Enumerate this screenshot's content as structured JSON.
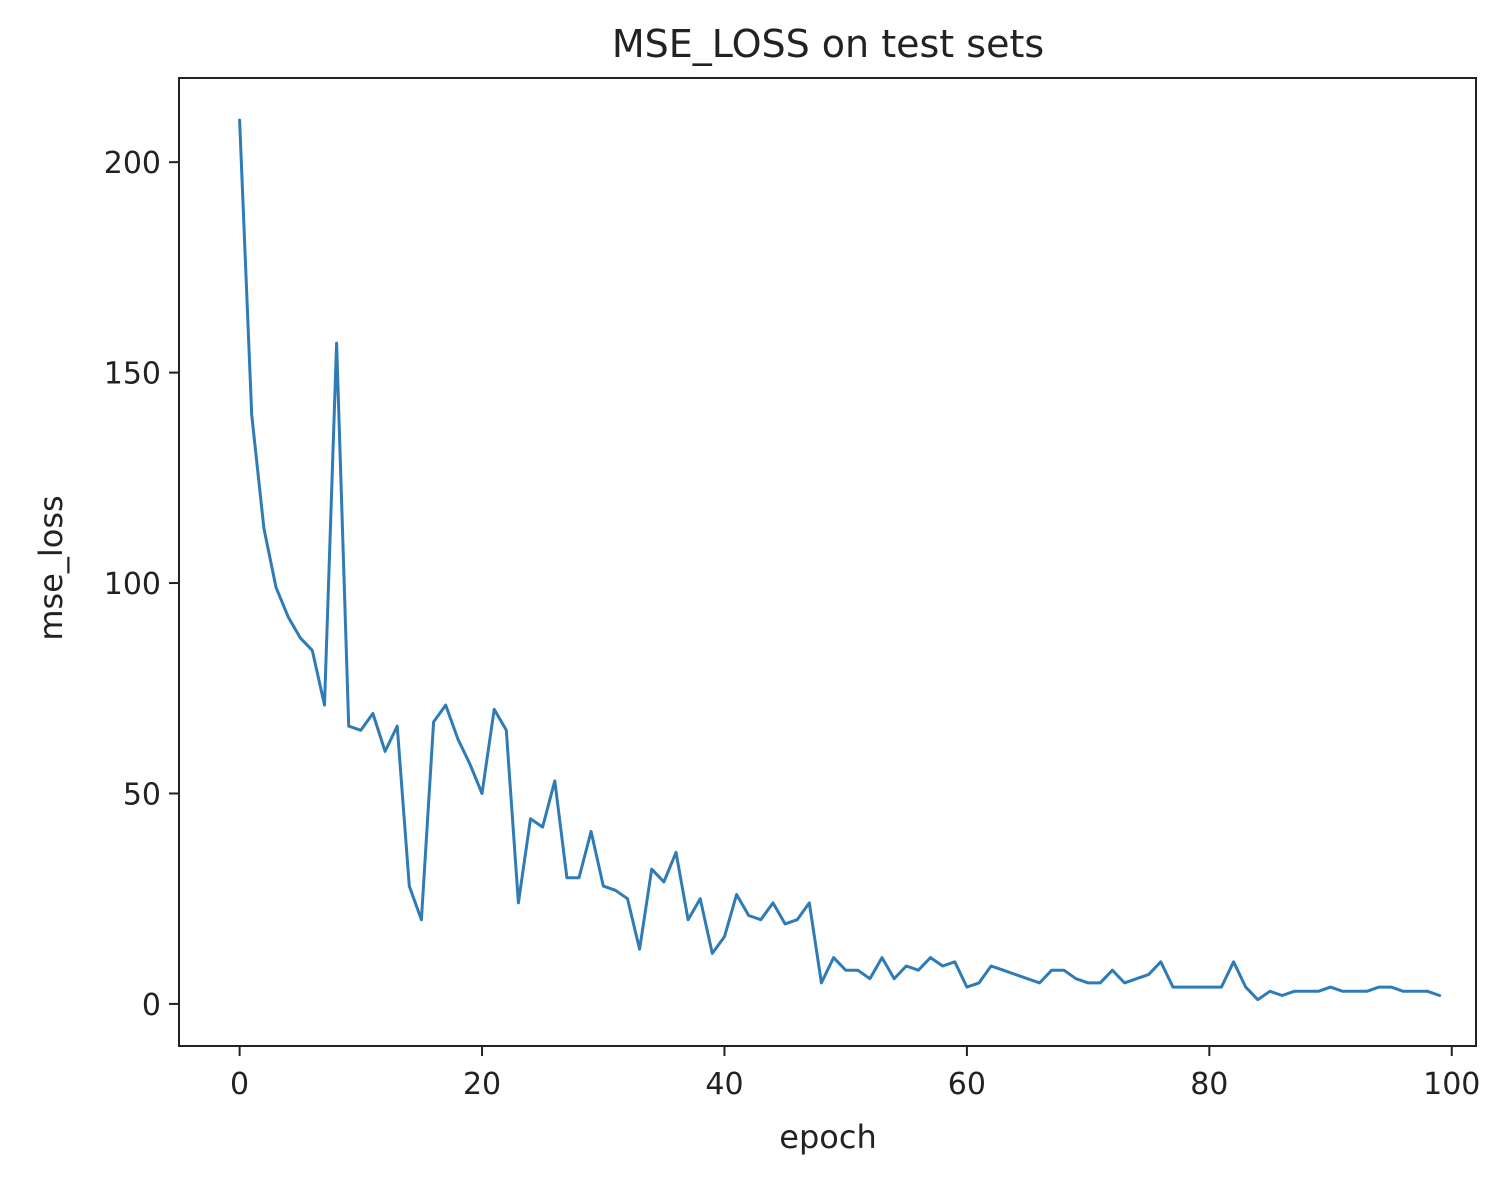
{
  "chart_data": {
    "type": "line",
    "title": "MSE_LOSS on test sets",
    "xlabel": "epoch",
    "ylabel": "mse_loss",
    "xlim": [
      -5,
      102
    ],
    "ylim": [
      -10,
      220
    ],
    "xticks": [
      0,
      20,
      40,
      60,
      80,
      100
    ],
    "yticks": [
      0,
      50,
      100,
      150,
      200
    ],
    "grid": false,
    "legend": "none",
    "color": "#2f7bb6",
    "series": [
      {
        "x": [
          0,
          1,
          2,
          3,
          4,
          5,
          6,
          7,
          8,
          9,
          10,
          11,
          12,
          13,
          14,
          15,
          16,
          17,
          18,
          19,
          20,
          21,
          22,
          23,
          24,
          25,
          26,
          27,
          28,
          29,
          30,
          31,
          32,
          33,
          34,
          35,
          36,
          37,
          38,
          39,
          40,
          41,
          42,
          43,
          44,
          45,
          46,
          47,
          48,
          49,
          50,
          51,
          52,
          53,
          54,
          55,
          56,
          57,
          58,
          59,
          60,
          61,
          62,
          63,
          64,
          65,
          66,
          67,
          68,
          69,
          70,
          71,
          72,
          73,
          74,
          75,
          76,
          77,
          78,
          79,
          80,
          81,
          82,
          83,
          84,
          85,
          86,
          87,
          88,
          89,
          90,
          91,
          92,
          93,
          94,
          95,
          96,
          97,
          98,
          99
        ],
        "values": [
          210,
          140,
          113,
          99,
          92,
          87,
          84,
          71,
          157,
          66,
          65,
          69,
          60,
          66,
          28,
          20,
          67,
          71,
          63,
          57,
          50,
          70,
          65,
          24,
          44,
          42,
          53,
          30,
          30,
          41,
          28,
          27,
          25,
          13,
          32,
          29,
          36,
          20,
          25,
          12,
          16,
          26,
          21,
          20,
          24,
          19,
          20,
          24,
          5,
          11,
          8,
          8,
          6,
          11,
          6,
          9,
          8,
          11,
          9,
          10,
          4,
          5,
          9,
          8,
          7,
          6,
          5,
          8,
          8,
          6,
          5,
          5,
          8,
          5,
          6,
          7,
          10,
          4,
          4,
          4,
          4,
          4,
          10,
          4,
          1,
          3,
          2,
          3,
          3,
          3,
          4,
          3,
          3,
          3,
          4,
          4,
          3,
          3,
          3,
          2
        ]
      }
    ]
  }
}
